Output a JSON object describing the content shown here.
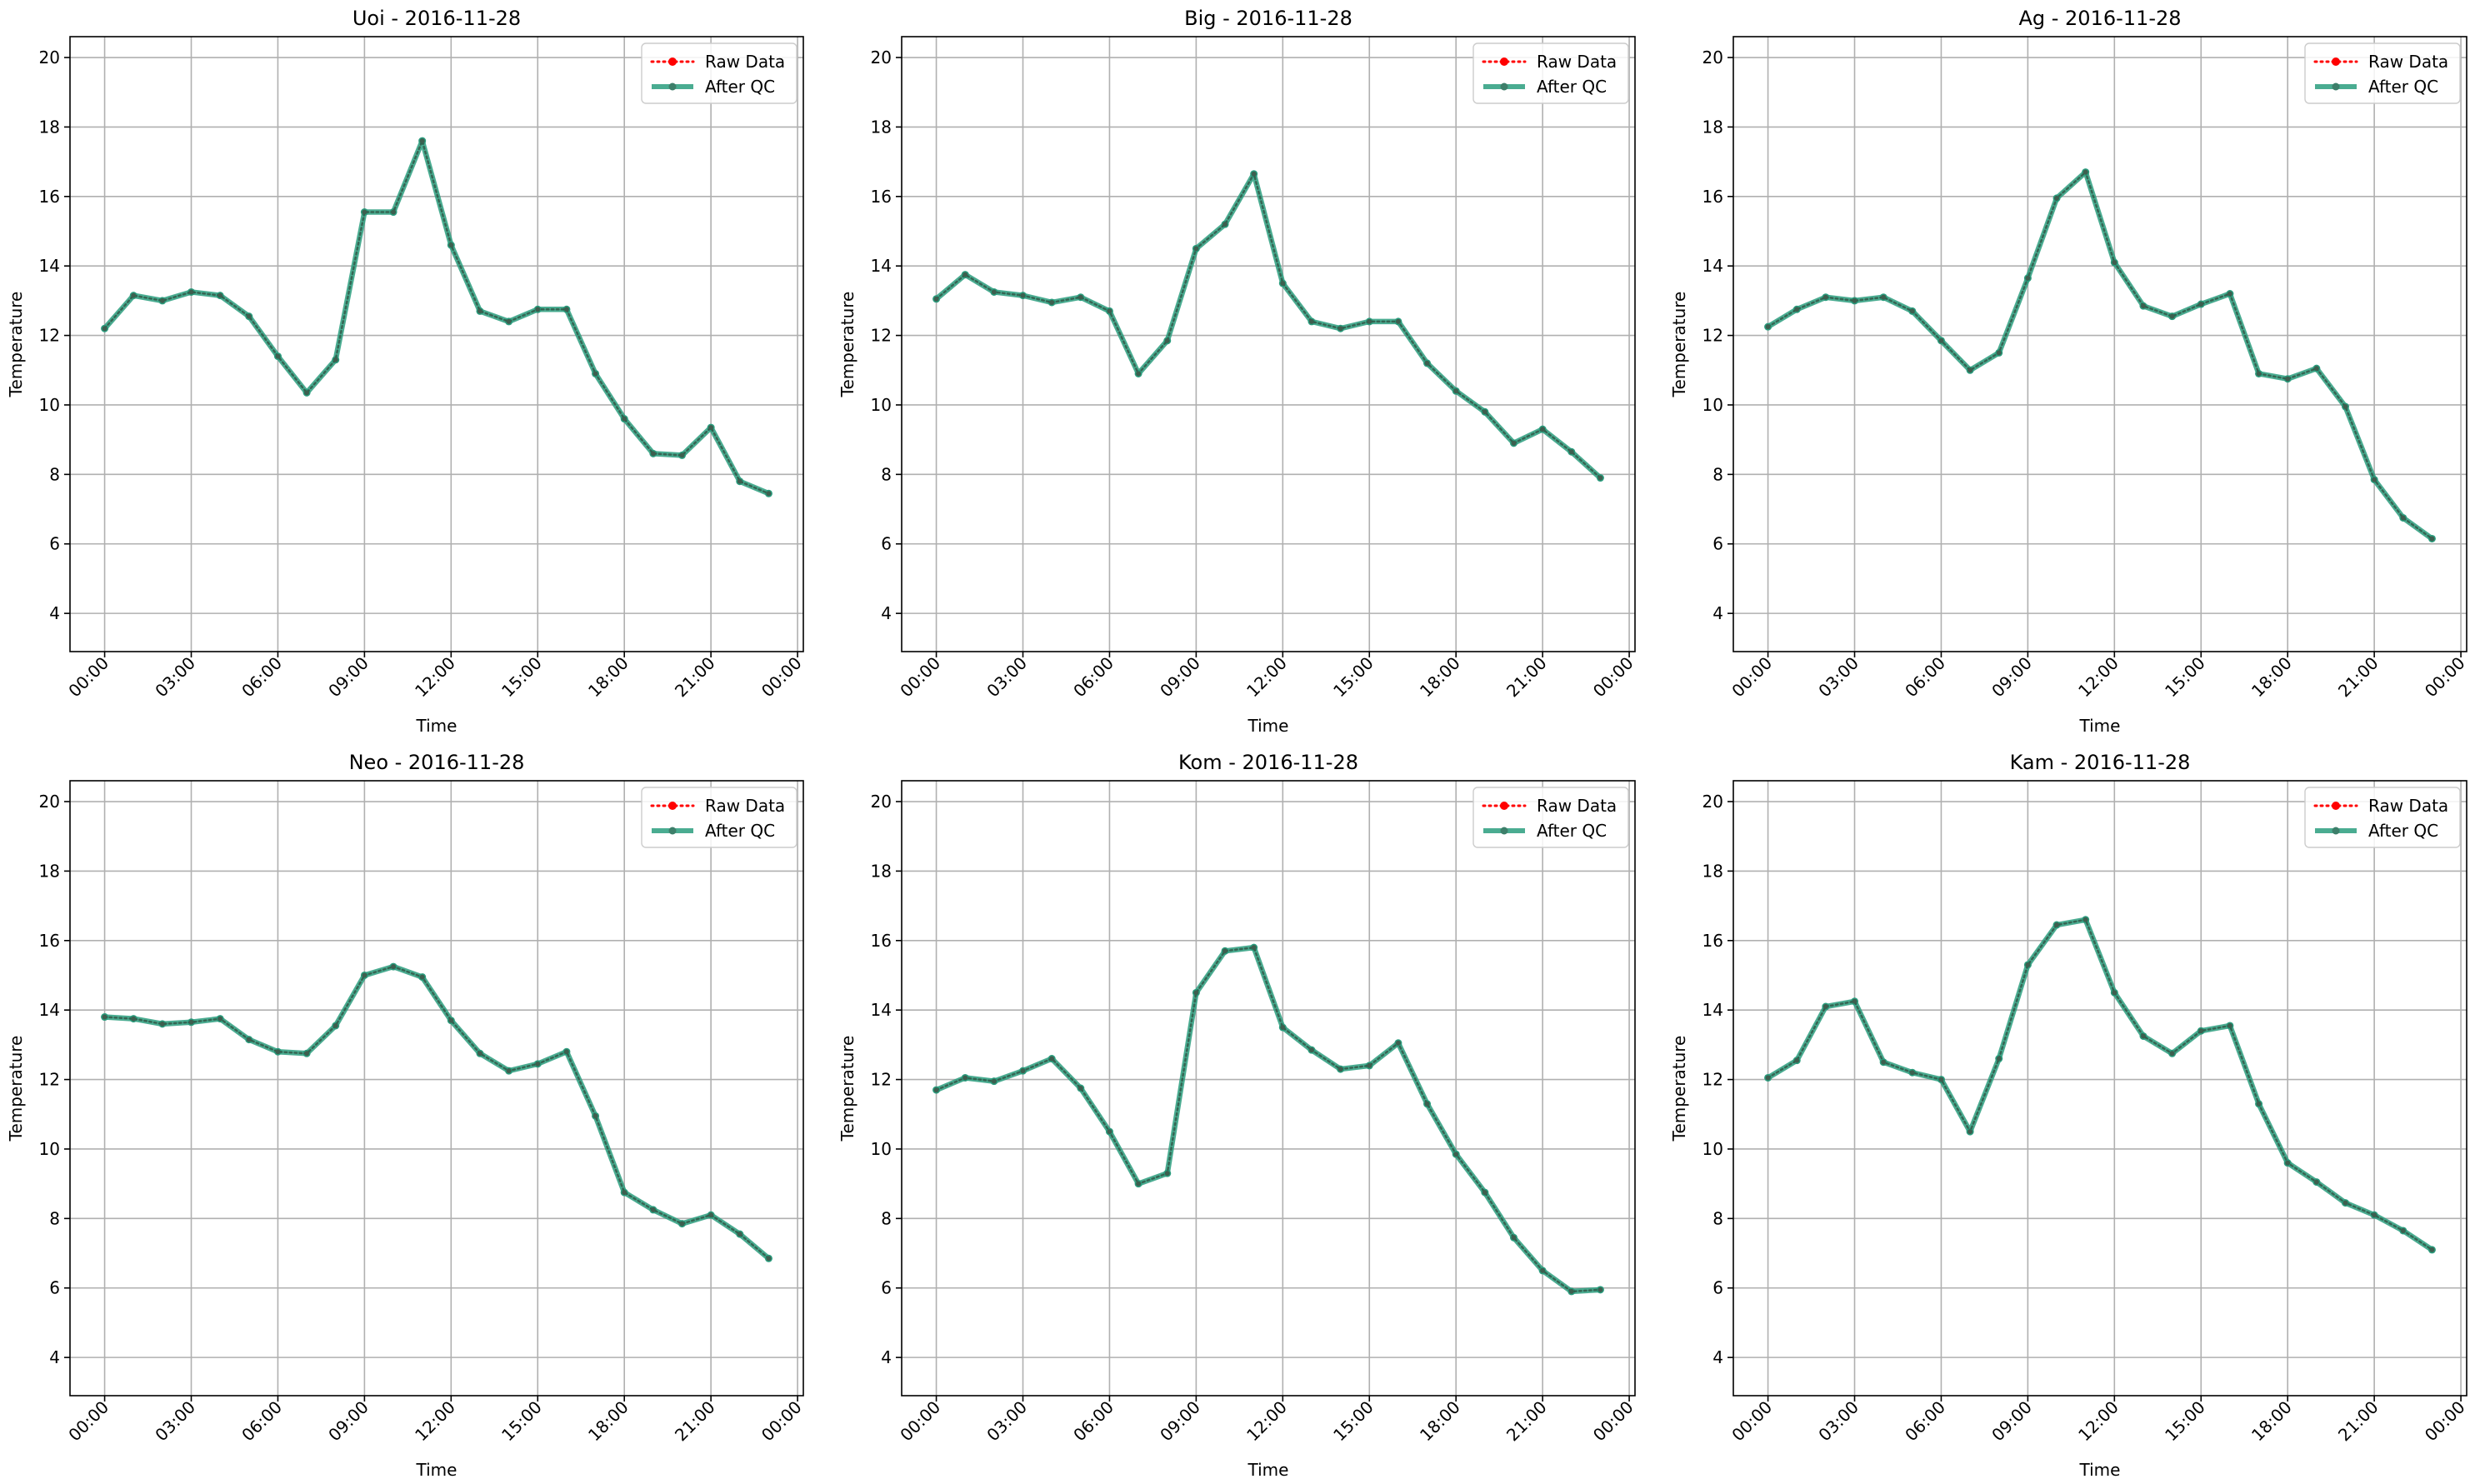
{
  "chart_data": [
    {
      "type": "line",
      "title": "Uoi - 2016-11-28",
      "xlabel": "Time",
      "ylabel": "Temperature",
      "ylim": [
        2.9,
        20.6
      ],
      "yticks": [
        4,
        6,
        8,
        10,
        12,
        14,
        16,
        18,
        20
      ],
      "xticks": [
        "00:00",
        "03:00",
        "06:00",
        "09:00",
        "12:00",
        "15:00",
        "18:00",
        "21:00",
        "00:00"
      ],
      "grid": true,
      "legend_position": "top-right",
      "x_unit": "hour of day",
      "x": [
        0,
        1,
        2,
        3,
        4,
        5,
        6,
        7,
        8,
        9,
        10,
        11,
        12,
        13,
        14,
        15,
        16,
        17,
        18,
        19,
        20,
        21,
        22,
        23
      ],
      "series": [
        {
          "name": "Raw Data",
          "color": "#ff0000",
          "style": "dotted",
          "values": [
            12.2,
            13.15,
            13.0,
            13.25,
            13.15,
            12.55,
            11.4,
            10.35,
            11.3,
            15.55,
            15.55,
            17.6,
            14.6,
            12.7,
            12.4,
            12.75,
            12.75,
            10.9,
            9.6,
            8.6,
            8.55,
            9.35,
            7.8,
            7.45
          ]
        },
        {
          "name": "After QC",
          "color": "#2a9d7e",
          "style": "solid",
          "values": [
            12.2,
            13.15,
            13.0,
            13.25,
            13.15,
            12.55,
            11.4,
            10.35,
            11.3,
            15.55,
            15.55,
            17.6,
            14.6,
            12.7,
            12.4,
            12.75,
            12.75,
            10.9,
            9.6,
            8.6,
            8.55,
            9.35,
            7.8,
            7.45
          ]
        }
      ]
    },
    {
      "type": "line",
      "title": "Big - 2016-11-28",
      "xlabel": "Time",
      "ylabel": "Temperature",
      "ylim": [
        2.9,
        20.6
      ],
      "yticks": [
        4,
        6,
        8,
        10,
        12,
        14,
        16,
        18,
        20
      ],
      "xticks": [
        "00:00",
        "03:00",
        "06:00",
        "09:00",
        "12:00",
        "15:00",
        "18:00",
        "21:00",
        "00:00"
      ],
      "grid": true,
      "legend_position": "top-right",
      "x_unit": "hour of day",
      "x": [
        0,
        1,
        2,
        3,
        4,
        5,
        6,
        7,
        8,
        9,
        10,
        11,
        12,
        13,
        14,
        15,
        16,
        17,
        18,
        19,
        20,
        21,
        22,
        23
      ],
      "series": [
        {
          "name": "Raw Data",
          "color": "#ff0000",
          "style": "dotted",
          "values": [
            13.05,
            13.75,
            13.25,
            13.15,
            12.95,
            13.1,
            12.7,
            10.9,
            11.85,
            14.5,
            15.2,
            16.65,
            13.5,
            12.4,
            12.2,
            12.4,
            12.4,
            11.2,
            10.4,
            9.8,
            8.9,
            9.3,
            8.65,
            7.9
          ]
        },
        {
          "name": "After QC",
          "color": "#2a9d7e",
          "style": "solid",
          "values": [
            13.05,
            13.75,
            13.25,
            13.15,
            12.95,
            13.1,
            12.7,
            10.9,
            11.85,
            14.5,
            15.2,
            16.65,
            13.5,
            12.4,
            12.2,
            12.4,
            12.4,
            11.2,
            10.4,
            9.8,
            8.9,
            9.3,
            8.65,
            7.9
          ]
        }
      ]
    },
    {
      "type": "line",
      "title": "Ag - 2016-11-28",
      "xlabel": "Time",
      "ylabel": "Temperature",
      "ylim": [
        2.9,
        20.6
      ],
      "yticks": [
        4,
        6,
        8,
        10,
        12,
        14,
        16,
        18,
        20
      ],
      "xticks": [
        "00:00",
        "03:00",
        "06:00",
        "09:00",
        "12:00",
        "15:00",
        "18:00",
        "21:00",
        "00:00"
      ],
      "grid": true,
      "legend_position": "top-right",
      "x_unit": "hour of day",
      "x": [
        0,
        1,
        2,
        3,
        4,
        5,
        6,
        7,
        8,
        9,
        10,
        11,
        12,
        13,
        14,
        15,
        16,
        17,
        18,
        19,
        20,
        21,
        22,
        23
      ],
      "series": [
        {
          "name": "Raw Data",
          "color": "#ff0000",
          "style": "dotted",
          "values": [
            12.25,
            12.75,
            13.1,
            13.0,
            13.1,
            12.7,
            11.85,
            11.0,
            11.5,
            13.65,
            15.95,
            16.7,
            14.1,
            12.85,
            12.55,
            12.9,
            13.2,
            10.9,
            10.75,
            11.05,
            9.95,
            7.85,
            6.75,
            6.15
          ]
        },
        {
          "name": "After QC",
          "color": "#2a9d7e",
          "style": "solid",
          "values": [
            12.25,
            12.75,
            13.1,
            13.0,
            13.1,
            12.7,
            11.85,
            11.0,
            11.5,
            13.65,
            15.95,
            16.7,
            14.1,
            12.85,
            12.55,
            12.9,
            13.2,
            10.9,
            10.75,
            11.05,
            9.95,
            7.85,
            6.75,
            6.15
          ]
        }
      ]
    },
    {
      "type": "line",
      "title": "Neo - 2016-11-28",
      "xlabel": "Time",
      "ylabel": "Temperature",
      "ylim": [
        2.9,
        20.6
      ],
      "yticks": [
        4,
        6,
        8,
        10,
        12,
        14,
        16,
        18,
        20
      ],
      "xticks": [
        "00:00",
        "03:00",
        "06:00",
        "09:00",
        "12:00",
        "15:00",
        "18:00",
        "21:00",
        "00:00"
      ],
      "grid": true,
      "legend_position": "top-right",
      "x_unit": "hour of day",
      "x": [
        0,
        1,
        2,
        3,
        4,
        5,
        6,
        7,
        8,
        9,
        10,
        11,
        12,
        13,
        14,
        15,
        16,
        17,
        18,
        19,
        20,
        21,
        22,
        23
      ],
      "series": [
        {
          "name": "Raw Data",
          "color": "#ff0000",
          "style": "dotted",
          "values": [
            13.8,
            13.75,
            13.6,
            13.65,
            13.75,
            13.15,
            12.8,
            12.75,
            13.55,
            15.0,
            15.25,
            14.95,
            13.7,
            12.75,
            12.25,
            12.45,
            12.8,
            10.95,
            8.75,
            8.25,
            7.85,
            8.1,
            7.55,
            6.85
          ]
        },
        {
          "name": "After QC",
          "color": "#2a9d7e",
          "style": "solid",
          "values": [
            13.8,
            13.75,
            13.6,
            13.65,
            13.75,
            13.15,
            12.8,
            12.75,
            13.55,
            15.0,
            15.25,
            14.95,
            13.7,
            12.75,
            12.25,
            12.45,
            12.8,
            10.95,
            8.75,
            8.25,
            7.85,
            8.1,
            7.55,
            6.85
          ]
        }
      ]
    },
    {
      "type": "line",
      "title": "Kom - 2016-11-28",
      "xlabel": "Time",
      "ylabel": "Temperature",
      "ylim": [
        2.9,
        20.6
      ],
      "yticks": [
        4,
        6,
        8,
        10,
        12,
        14,
        16,
        18,
        20
      ],
      "xticks": [
        "00:00",
        "03:00",
        "06:00",
        "09:00",
        "12:00",
        "15:00",
        "18:00",
        "21:00",
        "00:00"
      ],
      "grid": true,
      "legend_position": "top-right",
      "x_unit": "hour of day",
      "x": [
        0,
        1,
        2,
        3,
        4,
        5,
        6,
        7,
        8,
        9,
        10,
        11,
        12,
        13,
        14,
        15,
        16,
        17,
        18,
        19,
        20,
        21,
        22,
        23
      ],
      "series": [
        {
          "name": "Raw Data",
          "color": "#ff0000",
          "style": "dotted",
          "values": [
            11.7,
            12.05,
            11.95,
            12.25,
            12.6,
            11.75,
            10.5,
            9.0,
            9.3,
            14.5,
            15.7,
            15.8,
            13.5,
            12.85,
            12.3,
            12.4,
            13.05,
            11.3,
            9.85,
            8.75,
            7.45,
            6.5,
            5.9,
            5.95
          ]
        },
        {
          "name": "After QC",
          "color": "#2a9d7e",
          "style": "solid",
          "values": [
            11.7,
            12.05,
            11.95,
            12.25,
            12.6,
            11.75,
            10.5,
            9.0,
            9.3,
            14.5,
            15.7,
            15.8,
            13.5,
            12.85,
            12.3,
            12.4,
            13.05,
            11.3,
            9.85,
            8.75,
            7.45,
            6.5,
            5.9,
            5.95
          ]
        }
      ]
    },
    {
      "type": "line",
      "title": "Kam - 2016-11-28",
      "xlabel": "Time",
      "ylabel": "Temperature",
      "ylim": [
        2.9,
        20.6
      ],
      "yticks": [
        4,
        6,
        8,
        10,
        12,
        14,
        16,
        18,
        20
      ],
      "xticks": [
        "00:00",
        "03:00",
        "06:00",
        "09:00",
        "12:00",
        "15:00",
        "18:00",
        "21:00",
        "00:00"
      ],
      "grid": true,
      "legend_position": "top-right",
      "x_unit": "hour of day",
      "x": [
        0,
        1,
        2,
        3,
        4,
        5,
        6,
        7,
        8,
        9,
        10,
        11,
        12,
        13,
        14,
        15,
        16,
        17,
        18,
        19,
        20,
        21,
        22,
        23
      ],
      "series": [
        {
          "name": "Raw Data",
          "color": "#ff0000",
          "style": "dotted",
          "values": [
            12.05,
            12.55,
            14.1,
            14.25,
            12.5,
            12.2,
            12.0,
            10.5,
            12.6,
            15.3,
            16.45,
            16.6,
            14.5,
            13.25,
            12.75,
            13.4,
            13.55,
            11.3,
            9.6,
            9.05,
            8.45,
            8.1,
            7.65,
            7.1
          ]
        },
        {
          "name": "After QC",
          "color": "#2a9d7e",
          "style": "solid",
          "values": [
            12.05,
            12.55,
            14.1,
            14.25,
            12.5,
            12.2,
            12.0,
            10.5,
            12.6,
            15.3,
            16.45,
            16.6,
            14.5,
            13.25,
            12.75,
            13.4,
            13.55,
            11.3,
            9.6,
            9.05,
            8.45,
            8.1,
            7.65,
            7.1
          ]
        }
      ]
    }
  ]
}
